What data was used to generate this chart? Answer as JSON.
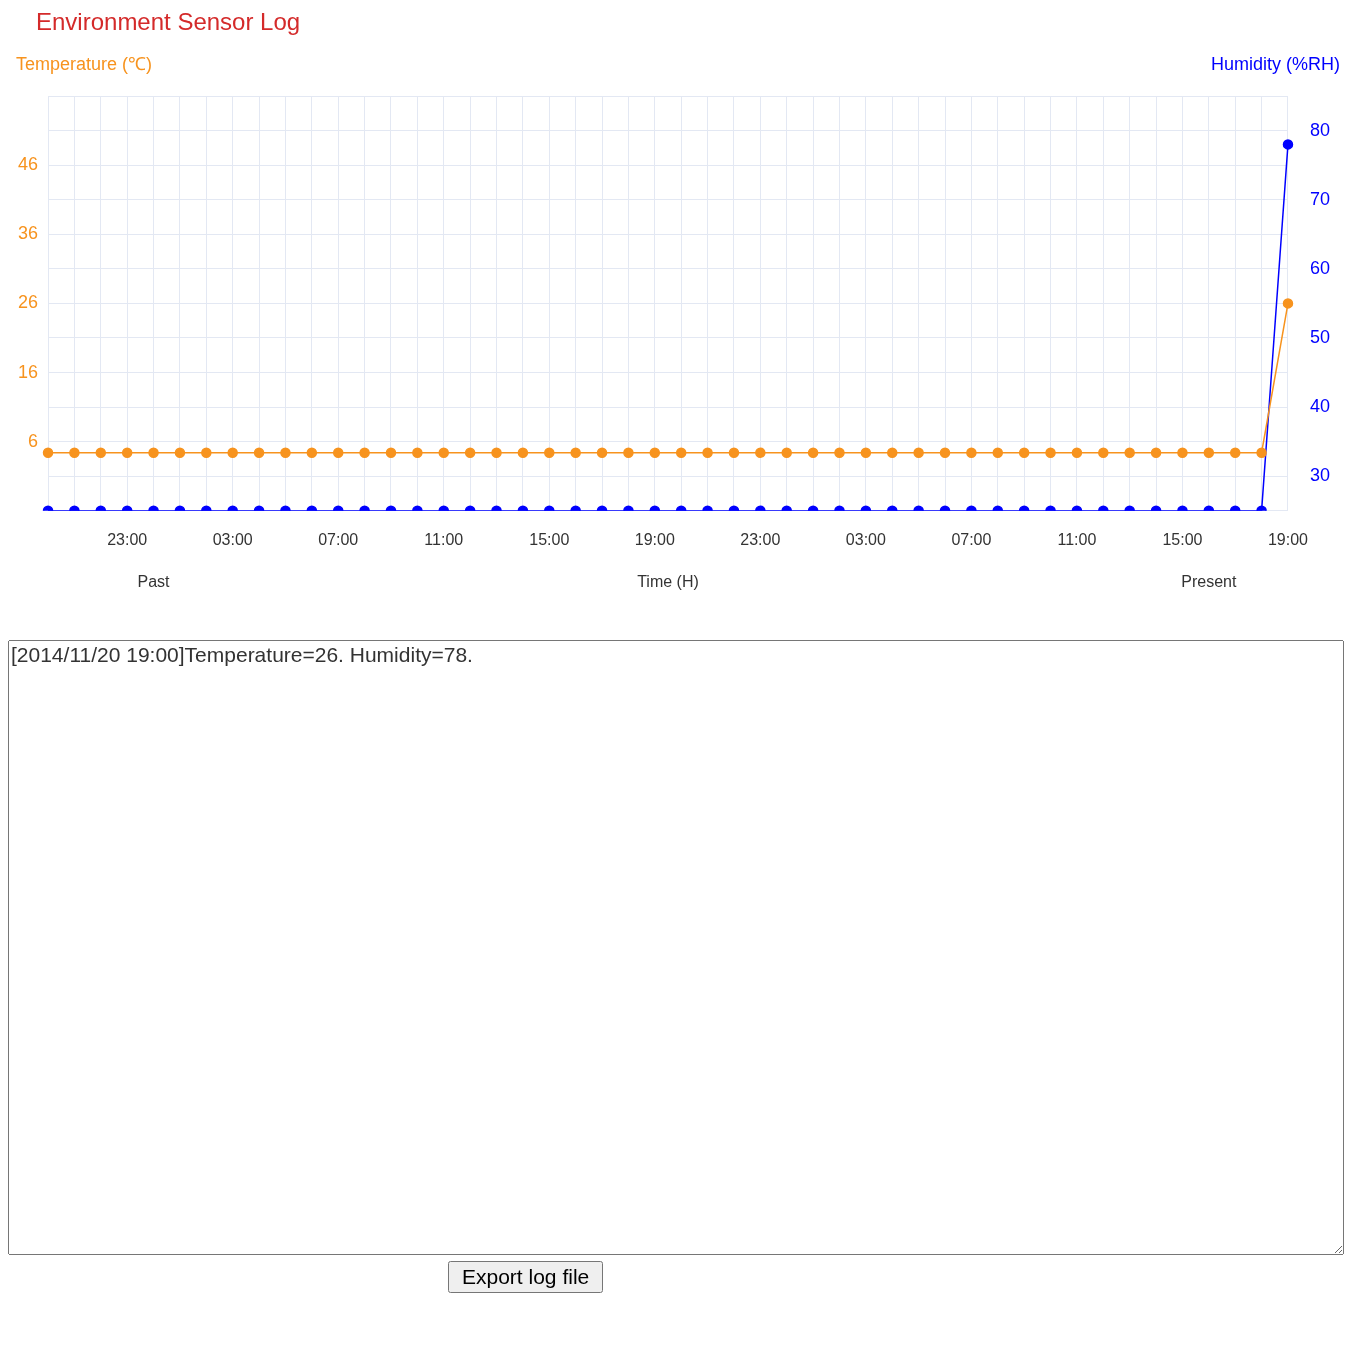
{
  "chart_data": {
    "type": "line",
    "title": "Environment Sensor Log",
    "xlabel": "Time (H)",
    "ylabel": "Temperature (℃)",
    "y2label": "Humidity (%RH)",
    "categories": [
      null,
      null,
      null,
      "23:00",
      null,
      null,
      null,
      "03:00",
      null,
      null,
      null,
      "07:00",
      null,
      null,
      null,
      "11:00",
      null,
      null,
      null,
      "15:00",
      null,
      null,
      null,
      "19:00",
      null,
      null,
      null,
      "23:00",
      null,
      null,
      null,
      "03:00",
      null,
      null,
      null,
      "07:00",
      null,
      null,
      null,
      "11:00",
      null,
      null,
      null,
      "15:00",
      null,
      null,
      null,
      "19:00"
    ],
    "series": [
      {
        "color": "#f7931e",
        "values": [
          4.4,
          4.4,
          4.4,
          4.4,
          4.4,
          4.4,
          4.4,
          4.4,
          4.4,
          4.4,
          4.4,
          4.4,
          4.4,
          4.4,
          4.4,
          4.4,
          4.4,
          4.4,
          4.4,
          4.4,
          4.4,
          4.4,
          4.4,
          4.4,
          4.4,
          4.4,
          4.4,
          4.4,
          4.4,
          4.4,
          4.4,
          4.4,
          4.4,
          4.4,
          4.4,
          4.4,
          4.4,
          4.4,
          4.4,
          4.4,
          4.4,
          4.4,
          4.4,
          4.4,
          4.4,
          4.4,
          4.4,
          26
        ]
      },
      {
        "color": "#0000ff",
        "axis": "y2",
        "values": [
          25,
          25,
          25,
          25,
          25,
          25,
          25,
          25,
          25,
          25,
          25,
          25,
          25,
          25,
          25,
          25,
          25,
          25,
          25,
          25,
          25,
          25,
          25,
          25,
          25,
          25,
          25,
          25,
          25,
          25,
          25,
          25,
          25,
          25,
          25,
          25,
          25,
          25,
          25,
          25,
          25,
          25,
          25,
          25,
          25,
          25,
          25,
          78
        ]
      }
    ],
    "ylim": [
      -4,
      56
    ],
    "yticks": [
      {
        "value": -4,
        "label": null
      },
      {
        "value": 1,
        "label": null
      },
      6,
      {
        "value": 11,
        "label": null
      },
      16,
      {
        "value": 21,
        "label": null
      },
      26,
      {
        "value": 31,
        "label": null
      },
      36,
      {
        "value": 41,
        "label": null
      },
      46,
      {
        "value": 51,
        "label": null
      },
      {
        "value": 56,
        "label": null
      }
    ],
    "y2lim": [
      25,
      85
    ],
    "y2ticks": [
      30,
      40,
      50,
      60,
      70,
      80
    ],
    "grid": true,
    "legend": false,
    "marker": "circle",
    "line_style": "solid",
    "annotations": [
      "Past",
      "Present",
      "[2014/11/20 19:00]Temperature=26. Humidity=78.",
      "Export log file"
    ]
  }
}
